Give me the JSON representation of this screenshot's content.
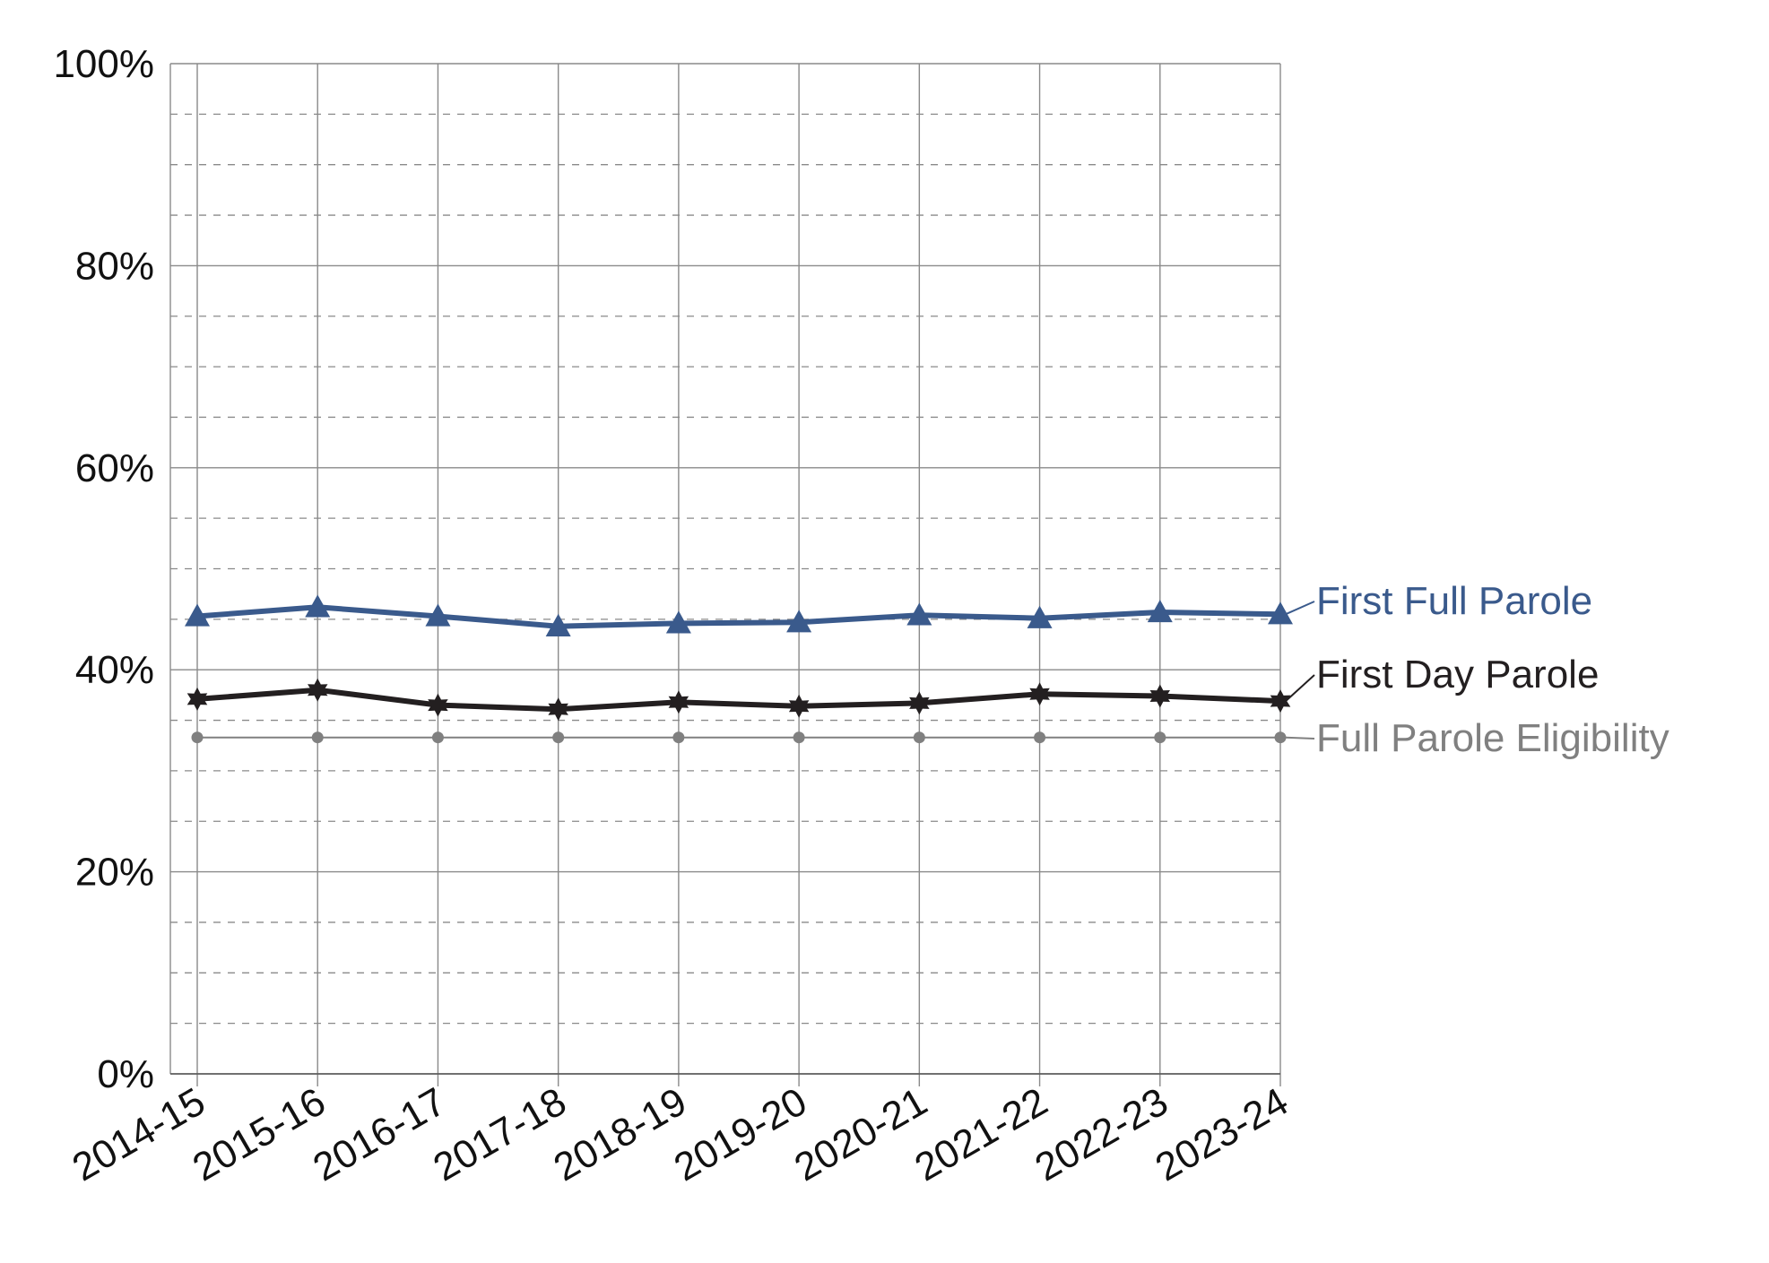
{
  "chart_data": {
    "type": "line",
    "title": "",
    "xlabel": "",
    "ylabel": "",
    "categories": [
      "2014-15",
      "2015-16",
      "2016-17",
      "2017-18",
      "2018-19",
      "2019-20",
      "2020-21",
      "2021-22",
      "2022-23",
      "2023-24"
    ],
    "ylim": [
      0,
      100
    ],
    "y_ticks": [
      "0%",
      "20%",
      "40%",
      "60%",
      "80%",
      "100%"
    ],
    "y_tick_values": [
      0,
      20,
      40,
      60,
      80,
      100
    ],
    "grid": true,
    "legend": "right, labels at line ends",
    "series": [
      {
        "name": "First Full Parole",
        "color": "#3a5a8c",
        "marker": "triangle",
        "values": [
          45.3,
          46.2,
          45.3,
          44.3,
          44.6,
          44.7,
          45.4,
          45.1,
          45.7,
          45.5
        ]
      },
      {
        "name": "First Day Parole",
        "color": "#231f20",
        "marker": "star",
        "values": [
          37.1,
          38.0,
          36.5,
          36.1,
          36.8,
          36.4,
          36.7,
          37.6,
          37.4,
          36.9
        ]
      },
      {
        "name": "Full Parole Eligibility",
        "color": "#808080",
        "marker": "circle",
        "values": [
          33.3,
          33.3,
          33.3,
          33.3,
          33.3,
          33.3,
          33.3,
          33.3,
          33.3,
          33.3
        ]
      }
    ]
  }
}
